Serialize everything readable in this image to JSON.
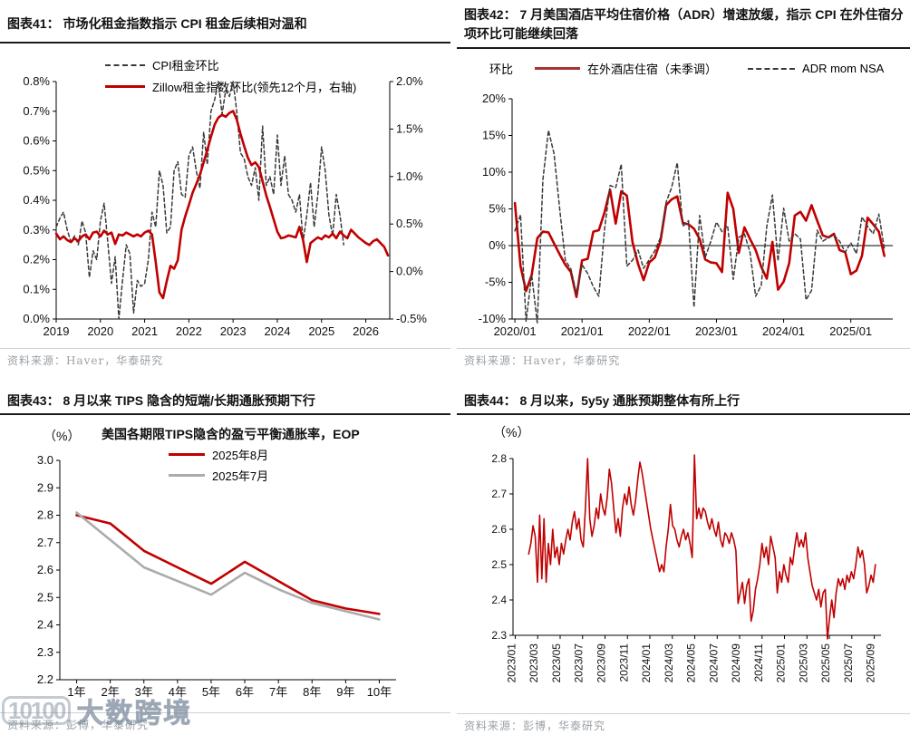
{
  "watermark": {
    "logo": "10100",
    "text": "大数跨境"
  },
  "panels": [
    {
      "id": "fig41",
      "title": "图表41：  市场化租金指数指示 CPI 租金后续相对温和",
      "source": "资料来源：Haver，华泰研究"
    },
    {
      "id": "fig42",
      "title": "图表42：  7 月美国酒店平均住宿价格（ADR）增速放缓，指示 CPI 在外住宿分项环比可能继续回落",
      "source": "资料来源：Haver，华泰研究"
    },
    {
      "id": "fig43",
      "title": "图表43：  8 月以来 TIPS 隐含的短端/长期通胀预期下行",
      "source": "资料来源：彭博，华泰研究"
    },
    {
      "id": "fig44",
      "title": "图表44：  8 月以来，5y5y 通胀预期整体有所上行",
      "source": "资料来源：彭博，华泰研究"
    }
  ],
  "legends": {
    "fig41_item1": "CPI租金环比",
    "fig41_item2": "Zillow租金指数环比(领先12个月，右轴)",
    "fig42_unit": "环比",
    "fig42_item1": "在外酒店住宿（未季调）",
    "fig42_item2": "ADR mom NSA",
    "fig43_unit": "（%）",
    "fig43_heading": "美国各期限TIPS隐含的盈亏平衡通胀率，EOP",
    "fig43_item1": "2025年8月",
    "fig43_item2": "2025年7月",
    "fig44_unit": "（%）"
  },
  "colors": {
    "red": "#C00000",
    "dark_dash": "#3a3a3a",
    "gray_series": "#ababab"
  },
  "chart_data": [
    {
      "id": "fig41",
      "type": "line",
      "title": "市场化租金指数指示 CPI 租金后续相对温和",
      "xRange": [
        0,
        90.5
      ],
      "xTicks": [
        {
          "v": 0,
          "label": "2019"
        },
        {
          "v": 12,
          "label": "2020"
        },
        {
          "v": 24,
          "label": "2021"
        },
        {
          "v": 36,
          "label": "2022"
        },
        {
          "v": 48,
          "label": "2023"
        },
        {
          "v": 60,
          "label": "2024"
        },
        {
          "v": 72,
          "label": "2025"
        },
        {
          "v": 84,
          "label": "2026"
        }
      ],
      "leftRange": [
        0,
        0.8
      ],
      "leftTicks": [
        {
          "v": 0,
          "label": "0.0%"
        },
        {
          "v": 0.1,
          "label": "0.1%"
        },
        {
          "v": 0.2,
          "label": "0.2%"
        },
        {
          "v": 0.3,
          "label": "0.3%"
        },
        {
          "v": 0.4,
          "label": "0.4%"
        },
        {
          "v": 0.5,
          "label": "0.5%"
        },
        {
          "v": 0.6,
          "label": "0.6%"
        },
        {
          "v": 0.7,
          "label": "0.7%"
        },
        {
          "v": 0.8,
          "label": "0.8%"
        }
      ],
      "rightRange": [
        -0.5,
        2.0
      ],
      "rightTicks": [
        {
          "v": -0.5,
          "label": "-0.5%"
        },
        {
          "v": 0,
          "label": "0.0%"
        },
        {
          "v": 0.5,
          "label": "0.5%"
        },
        {
          "v": 1.0,
          "label": "1.0%"
        },
        {
          "v": 1.5,
          "label": "1.5%"
        },
        {
          "v": 2.0,
          "label": "2.0%"
        }
      ],
      "series": [
        {
          "name": "cpi-rent-mom",
          "axis": "left",
          "color": "#3a3a3a",
          "width": 1.5,
          "dash": "4 3",
          "xStart": 0,
          "xEnd": 78,
          "values": [
            0.31,
            0.34,
            0.36,
            0.3,
            0.26,
            0.28,
            0.25,
            0.33,
            0.29,
            0.14,
            0.23,
            0.2,
            0.33,
            0.39,
            0.26,
            0.12,
            0.21,
            0.0,
            0.13,
            0.25,
            0.22,
            0.02,
            0.13,
            0.11,
            0.12,
            0.2,
            0.36,
            0.31,
            0.5,
            0.45,
            0.29,
            0.31,
            0.5,
            0.53,
            0.42,
            0.41,
            0.55,
            0.58,
            0.5,
            0.44,
            0.63,
            0.52,
            0.7,
            0.74,
            0.8,
            0.69,
            0.77,
            0.75,
            0.8,
            0.7,
            0.56,
            0.54,
            0.48,
            0.45,
            0.51,
            0.4,
            0.65,
            0.45,
            0.48,
            0.42,
            0.62,
            0.45,
            0.55,
            0.42,
            0.4,
            0.36,
            0.42,
            0.26,
            0.35,
            0.46,
            0.31,
            0.42,
            0.58,
            0.5,
            0.35,
            0.28,
            0.42,
            0.35,
            0.25
          ]
        },
        {
          "name": "zillow-rent-mom",
          "axis": "right",
          "color": "#C00000",
          "width": 2.6,
          "dash": null,
          "xStart": 0,
          "xEnd": 90,
          "values": [
            0.4,
            0.34,
            0.37,
            0.33,
            0.31,
            0.35,
            0.32,
            0.37,
            0.39,
            0.34,
            0.41,
            0.42,
            0.37,
            0.43,
            0.39,
            0.41,
            0.29,
            0.39,
            0.38,
            0.41,
            0.39,
            0.37,
            0.39,
            0.37,
            0.41,
            0.43,
            0.39,
            0.1,
            -0.22,
            -0.28,
            -0.1,
            0.06,
            0.03,
            0.12,
            0.44,
            0.58,
            0.7,
            0.83,
            0.92,
            1.02,
            1.15,
            1.28,
            1.42,
            1.55,
            1.62,
            1.65,
            1.63,
            1.67,
            1.69,
            1.6,
            1.45,
            1.32,
            1.2,
            1.12,
            1.15,
            1.1,
            0.95,
            0.8,
            0.68,
            0.55,
            0.42,
            0.35,
            0.36,
            0.38,
            0.37,
            0.36,
            0.47,
            0.33,
            0.1,
            0.3,
            0.33,
            0.36,
            0.34,
            0.38,
            0.36,
            0.4,
            0.35,
            0.42,
            0.38,
            0.35,
            0.44,
            0.4,
            0.36,
            0.33,
            0.3,
            0.28,
            0.32,
            0.34,
            0.3,
            0.26,
            0.17
          ]
        }
      ]
    },
    {
      "id": "fig42",
      "type": "line",
      "title": "7 月美国酒店平均住宿价格（ADR）增速放缓",
      "xRange": [
        -0.5,
        67.5
      ],
      "zeroLine": true,
      "xTicks": [
        {
          "v": 0,
          "label": "2020/01"
        },
        {
          "v": 12,
          "label": "2021/01"
        },
        {
          "v": 24,
          "label": "2022/01"
        },
        {
          "v": 36,
          "label": "2023/01"
        },
        {
          "v": 48,
          "label": "2024/01"
        },
        {
          "v": 60,
          "label": "2025/01"
        }
      ],
      "leftRange": [
        -10,
        20
      ],
      "leftTicks": [
        {
          "v": -10,
          "label": "-10%"
        },
        {
          "v": -5,
          "label": "-5%"
        },
        {
          "v": 0,
          "label": "0%"
        },
        {
          "v": 5,
          "label": "5%"
        },
        {
          "v": 10,
          "label": "10%"
        },
        {
          "v": 15,
          "label": "15%"
        },
        {
          "v": 20,
          "label": "20%"
        }
      ],
      "series": [
        {
          "name": "lodging-away-mom",
          "axis": "left",
          "color": "#C00000",
          "width": 2.6,
          "dash": null,
          "xStart": 0,
          "xEnd": 66,
          "values": [
            5.8,
            -2.8,
            -6.2,
            -4.0,
            1.0,
            1.9,
            1.8,
            0.3,
            -1.2,
            -2.6,
            -3.6,
            -7.0,
            -2.0,
            -1.8,
            1.9,
            2.1,
            4.5,
            7.6,
            3.0,
            7.4,
            6.8,
            0.5,
            -2.5,
            -4.7,
            -2.3,
            -1.6,
            0.6,
            5.5,
            6.3,
            6.7,
            3.1,
            2.9,
            2.3,
            0.9,
            -1.9,
            -2.3,
            -2.4,
            -3.6,
            7.2,
            5.0,
            -1.0,
            2.5,
            0.9,
            -0.6,
            -2.9,
            -4.5,
            0.5,
            -6.0,
            -4.9,
            -2.4,
            4.1,
            4.6,
            3.4,
            5.5,
            3.4,
            1.4,
            1.1,
            1.6,
            -0.6,
            -0.9,
            -3.9,
            -3.4,
            -1.4,
            3.8,
            2.9,
            1.9,
            -1.4
          ]
        },
        {
          "name": "adr-mom-nsa",
          "axis": "left",
          "color": "#3a3a3a",
          "width": 1.5,
          "dash": "4 3",
          "xStart": 0,
          "xEnd": 66,
          "values": [
            2.0,
            4.2,
            -10.3,
            -4.0,
            -10.5,
            9.0,
            15.7,
            12.5,
            5.0,
            -2.0,
            -3.2,
            -6.6,
            -2.6,
            -3.8,
            -5.6,
            -6.9,
            2.1,
            8.2,
            7.9,
            11.1,
            -2.8,
            -2.0,
            -0.6,
            -3.1,
            -1.9,
            -0.7,
            1.1,
            5.9,
            7.9,
            11.3,
            2.6,
            3.4,
            -8.4,
            4.1,
            -1.6,
            0.6,
            3.2,
            1.9,
            2.7,
            -4.6,
            1.1,
            1.6,
            -0.9,
            -6.9,
            -5.4,
            2.6,
            6.9,
            -2.1,
            5.1,
            0.6,
            1.6,
            0.9,
            -7.4,
            -6.1,
            2.1,
            0.6,
            1.1,
            1.4,
            0.6,
            -0.9,
            0.4,
            -1.1,
            3.9,
            2.6,
            1.6,
            4.3,
            -0.4
          ]
        }
      ]
    },
    {
      "id": "fig43",
      "type": "line",
      "title": "美国各期限TIPS隐含的盈亏平衡通胀率，EOP",
      "xRange": [
        -0.5,
        9.5
      ],
      "xTicks": [
        {
          "v": 0,
          "label": "1年"
        },
        {
          "v": 1,
          "label": "2年"
        },
        {
          "v": 2,
          "label": "3年"
        },
        {
          "v": 3,
          "label": "4年"
        },
        {
          "v": 4,
          "label": "5年"
        },
        {
          "v": 5,
          "label": "6年"
        },
        {
          "v": 6,
          "label": "7年"
        },
        {
          "v": 7,
          "label": "8年"
        },
        {
          "v": 8,
          "label": "9年"
        },
        {
          "v": 9,
          "label": "10年"
        }
      ],
      "leftRange": [
        2.2,
        3.0
      ],
      "leftTicks": [
        {
          "v": 2.2,
          "label": "2.2"
        },
        {
          "v": 2.3,
          "label": "2.3"
        },
        {
          "v": 2.4,
          "label": "2.4"
        },
        {
          "v": 2.5,
          "label": "2.5"
        },
        {
          "v": 2.6,
          "label": "2.6"
        },
        {
          "v": 2.7,
          "label": "2.7"
        },
        {
          "v": 2.8,
          "label": "2.8"
        },
        {
          "v": 2.9,
          "label": "2.9"
        },
        {
          "v": 3.0,
          "label": "3.0"
        }
      ],
      "series": [
        {
          "name": "tips-2025-aug",
          "axis": "left",
          "color": "#C00000",
          "width": 2.6,
          "dash": null,
          "xStart": 0,
          "xEnd": 9,
          "values": [
            2.8,
            2.77,
            2.67,
            2.61,
            2.55,
            2.63,
            2.56,
            2.49,
            2.46,
            2.44
          ]
        },
        {
          "name": "tips-2025-jul",
          "axis": "left",
          "color": "#ababab",
          "width": 2.6,
          "dash": null,
          "xStart": 0,
          "xEnd": 9,
          "values": [
            2.81,
            2.71,
            2.61,
            2.56,
            2.51,
            2.59,
            2.53,
            2.48,
            2.45,
            2.42
          ]
        }
      ]
    },
    {
      "id": "fig44",
      "type": "line",
      "title": "5y5y 通胀预期",
      "xRange": [
        -0.2,
        32.6
      ],
      "rotateX": true,
      "tickFont": 12,
      "xTicks": [
        {
          "v": 0,
          "label": "2023/01"
        },
        {
          "v": 2,
          "label": "2023/03"
        },
        {
          "v": 4,
          "label": "2023/05"
        },
        {
          "v": 6,
          "label": "2023/07"
        },
        {
          "v": 8,
          "label": "2023/09"
        },
        {
          "v": 10,
          "label": "2023/11"
        },
        {
          "v": 12,
          "label": "2024/01"
        },
        {
          "v": 14,
          "label": "2024/03"
        },
        {
          "v": 16,
          "label": "2024/05"
        },
        {
          "v": 18,
          "label": "2024/07"
        },
        {
          "v": 20,
          "label": "2024/09"
        },
        {
          "v": 22,
          "label": "2024/11"
        },
        {
          "v": 24,
          "label": "2025/01"
        },
        {
          "v": 26,
          "label": "2025/03"
        },
        {
          "v": 28,
          "label": "2025/05"
        },
        {
          "v": 30,
          "label": "2025/07"
        },
        {
          "v": 32,
          "label": "2025/09"
        }
      ],
      "leftRange": [
        2.3,
        2.8
      ],
      "leftTicks": [
        {
          "v": 2.3,
          "label": "2.3"
        },
        {
          "v": 2.4,
          "label": "2.4"
        },
        {
          "v": 2.5,
          "label": "2.5"
        },
        {
          "v": 2.6,
          "label": "2.6"
        },
        {
          "v": 2.7,
          "label": "2.7"
        },
        {
          "v": 2.8,
          "label": "2.8"
        }
      ],
      "series": [
        {
          "name": "5y5y-inflation-expectation",
          "axis": "left",
          "color": "#C00000",
          "width": 1.6,
          "dash": null,
          "xStart": 1.2,
          "xEnd": 32.1,
          "values": [
            2.53,
            2.56,
            2.61,
            2.58,
            2.45,
            2.64,
            2.46,
            2.63,
            2.45,
            2.56,
            2.5,
            2.6,
            2.52,
            2.55,
            2.5,
            2.56,
            2.53,
            2.57,
            2.6,
            2.57,
            2.62,
            2.65,
            2.6,
            2.63,
            2.57,
            2.55,
            2.66,
            2.8,
            2.63,
            2.58,
            2.61,
            2.66,
            2.63,
            2.7,
            2.66,
            2.64,
            2.69,
            2.77,
            2.73,
            2.66,
            2.59,
            2.63,
            2.58,
            2.66,
            2.7,
            2.67,
            2.72,
            2.67,
            2.64,
            2.68,
            2.74,
            2.79,
            2.76,
            2.72,
            2.68,
            2.64,
            2.6,
            2.57,
            2.54,
            2.51,
            2.48,
            2.5,
            2.48,
            2.55,
            2.6,
            2.67,
            2.61,
            2.6,
            2.57,
            2.55,
            2.58,
            2.6,
            2.57,
            2.59,
            2.56,
            2.52,
            2.81,
            2.63,
            2.66,
            2.63,
            2.66,
            2.65,
            2.62,
            2.6,
            2.63,
            2.6,
            2.58,
            2.62,
            2.57,
            2.55,
            2.59,
            2.58,
            2.56,
            2.59,
            2.57,
            2.54,
            2.39,
            2.42,
            2.45,
            2.39,
            2.44,
            2.46,
            2.34,
            2.37,
            2.43,
            2.46,
            2.5,
            2.56,
            2.52,
            2.55,
            2.5,
            2.58,
            2.55,
            2.52,
            2.42,
            2.48,
            2.45,
            2.5,
            2.47,
            2.45,
            2.52,
            2.5,
            2.55,
            2.59,
            2.55,
            2.57,
            2.55,
            2.59,
            2.52,
            2.48,
            2.44,
            2.42,
            2.4,
            2.43,
            2.38,
            2.42,
            2.43,
            2.29,
            2.35,
            2.4,
            2.35,
            2.42,
            2.46,
            2.44,
            2.46,
            2.43,
            2.47,
            2.45,
            2.48,
            2.46,
            2.5,
            2.55,
            2.52,
            2.54,
            2.5,
            2.42,
            2.44,
            2.47,
            2.45,
            2.5
          ]
        }
      ]
    }
  ]
}
